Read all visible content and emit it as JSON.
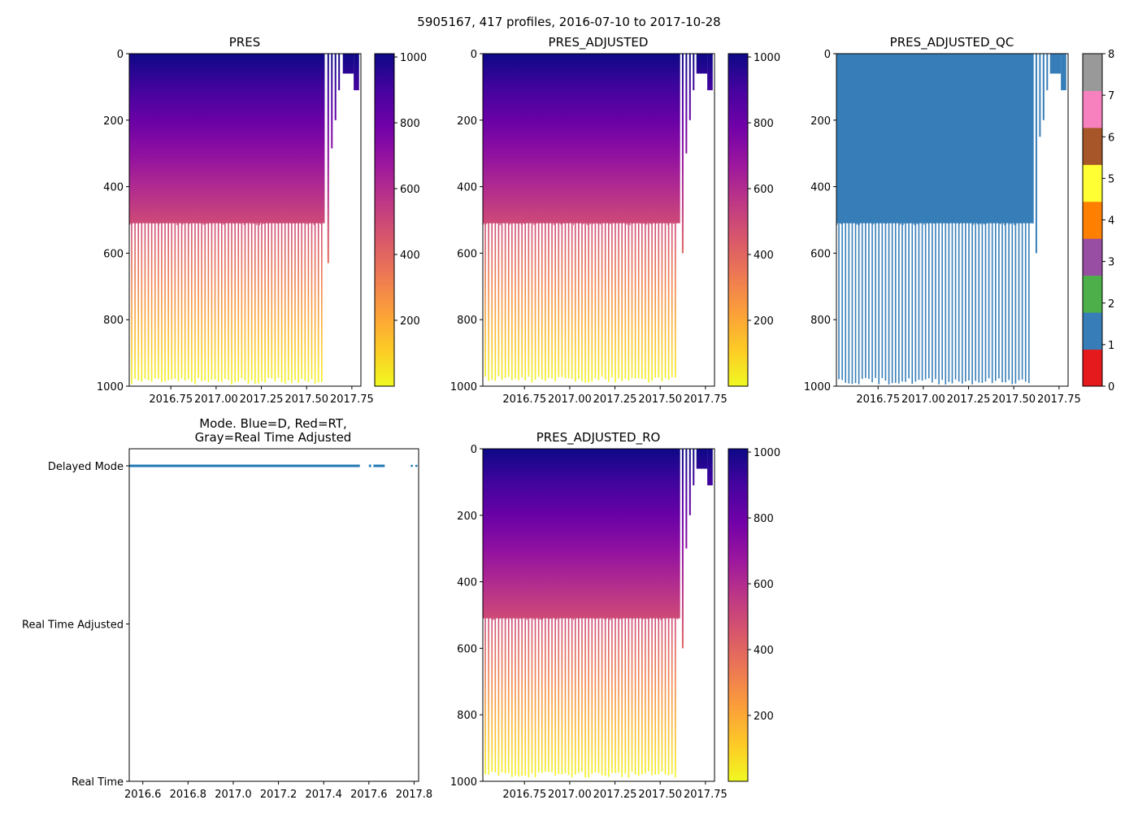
{
  "figure": {
    "suptitle": "5905167, 417 profiles, 2016-07-10 to 2017-10-28"
  },
  "colors": {
    "plasma": [
      "#0d0887",
      "#46039f",
      "#7201a8",
      "#9c179e",
      "#bd3786",
      "#d8576b",
      "#ed7953",
      "#fb9f3a",
      "#fdca26",
      "#f0f921"
    ],
    "qc": [
      "#e41a1c",
      "#377eb8",
      "#4daf4a",
      "#984ea3",
      "#ff7f00",
      "#ffff33",
      "#a65628",
      "#f781bf",
      "#999999"
    ],
    "mode_line": "#1f77b4",
    "axis": "#000000"
  },
  "chart_data": [
    {
      "id": "pres",
      "type": "heatmap",
      "title": "PRES",
      "colormap": "plasma",
      "xlim": [
        2016.52,
        2017.8
      ],
      "ylim": [
        1000,
        0
      ],
      "xticks": [
        2016.75,
        2017.0,
        2017.25,
        2017.5,
        2017.75
      ],
      "xtick_labels": [
        "2016.75",
        "2017.00",
        "2017.25",
        "2017.50",
        "2017.75"
      ],
      "yticks": [
        0,
        200,
        400,
        600,
        800,
        1000
      ],
      "ytick_labels": [
        "0",
        "200",
        "400",
        "600",
        "800",
        "1000"
      ],
      "colorbar": {
        "range": [
          0,
          1010
        ],
        "ticks": [
          200,
          400,
          600,
          800,
          1000
        ],
        "tick_labels": [
          "200",
          "400",
          "600",
          "800",
          "1000"
        ]
      },
      "continuous_segment": {
        "x_start": 2016.52,
        "x_end": 2017.6,
        "depth_max": 510
      },
      "deep_profiles": {
        "x_start": 2016.53,
        "x_end": 2017.58,
        "count": 58,
        "depth_max": 995
      },
      "late_profiles": [
        {
          "x": 2017.615,
          "depth_max": 630
        },
        {
          "x": 2017.635,
          "depth_max": 285
        },
        {
          "x": 2017.655,
          "depth_max": 200
        },
        {
          "x": 2017.675,
          "depth_max": 110
        },
        {
          "x": 2017.7,
          "depth_max": 60,
          "x_end": 2017.76
        },
        {
          "x": 2017.76,
          "depth_max": 110,
          "x_end": 2017.79
        }
      ]
    },
    {
      "id": "pres_adjusted",
      "type": "heatmap",
      "title": "PRES_ADJUSTED",
      "colormap": "plasma",
      "xlim": [
        2016.52,
        2017.8
      ],
      "ylim": [
        1000,
        0
      ],
      "xticks": [
        2016.75,
        2017.0,
        2017.25,
        2017.5,
        2017.75
      ],
      "xtick_labels": [
        "2016.75",
        "2017.00",
        "2017.25",
        "2017.50",
        "2017.75"
      ],
      "yticks": [
        0,
        200,
        400,
        600,
        800,
        1000
      ],
      "ytick_labels": [
        "0",
        "200",
        "400",
        "600",
        "800",
        "1000"
      ],
      "colorbar": {
        "range": [
          0,
          1010
        ],
        "ticks": [
          200,
          400,
          600,
          800,
          1000
        ],
        "tick_labels": [
          "200",
          "400",
          "600",
          "800",
          "1000"
        ]
      },
      "continuous_segment": {
        "x_start": 2016.52,
        "x_end": 2017.61,
        "depth_max": 510
      },
      "deep_profiles": {
        "x_start": 2016.53,
        "x_end": 2017.58,
        "count": 58,
        "depth_max": 990
      },
      "late_profiles": [
        {
          "x": 2017.62,
          "depth_max": 600
        },
        {
          "x": 2017.64,
          "depth_max": 300
        },
        {
          "x": 2017.66,
          "depth_max": 200
        },
        {
          "x": 2017.68,
          "depth_max": 110
        },
        {
          "x": 2017.7,
          "depth_max": 60,
          "x_end": 2017.76
        },
        {
          "x": 2017.76,
          "depth_max": 110,
          "x_end": 2017.79
        }
      ]
    },
    {
      "id": "pres_adjusted_qc",
      "type": "heatmap",
      "title": "PRES_ADJUSTED_QC",
      "colormap": "qc",
      "qc_flag": 1,
      "xlim": [
        2016.52,
        2017.8
      ],
      "ylim": [
        1000,
        0
      ],
      "xticks": [
        2016.75,
        2017.0,
        2017.25,
        2017.5,
        2017.75
      ],
      "xtick_labels": [
        "2016.75",
        "2017.00",
        "2017.25",
        "2017.50",
        "2017.75"
      ],
      "yticks": [
        0,
        200,
        400,
        600,
        800,
        1000
      ],
      "ytick_labels": [
        "0",
        "200",
        "400",
        "600",
        "800",
        "1000"
      ],
      "colorbar": {
        "range": [
          0,
          8
        ],
        "ticks": [
          0,
          1,
          2,
          3,
          4,
          5,
          6,
          7,
          8
        ],
        "tick_labels": [
          "0",
          "1",
          "2",
          "3",
          "4",
          "5",
          "6",
          "7",
          "8"
        ]
      },
      "continuous_segment": {
        "x_start": 2016.52,
        "x_end": 2017.61,
        "depth_max": 510
      },
      "deep_profiles": {
        "x_start": 2016.53,
        "x_end": 2017.58,
        "count": 58,
        "depth_max": 995
      },
      "late_profiles": [
        {
          "x": 2017.62,
          "depth_max": 600
        },
        {
          "x": 2017.64,
          "depth_max": 250
        },
        {
          "x": 2017.66,
          "depth_max": 200
        },
        {
          "x": 2017.68,
          "depth_max": 110
        },
        {
          "x": 2017.7,
          "depth_max": 60,
          "x_end": 2017.76
        },
        {
          "x": 2017.76,
          "depth_max": 110,
          "x_end": 2017.79
        }
      ]
    },
    {
      "id": "mode",
      "type": "scatter",
      "title_lines": [
        "Mode. Blue=D, Red=RT,",
        "Gray=Real Time Adjusted"
      ],
      "xlim": [
        2016.54,
        2017.82
      ],
      "xticks": [
        2016.6,
        2016.8,
        2017.0,
        2017.2,
        2017.4,
        2017.6,
        2017.8
      ],
      "xtick_labels": [
        "2016.6",
        "2016.8",
        "2017.0",
        "2017.2",
        "2017.4",
        "2017.6",
        "2017.8"
      ],
      "categories": [
        "Real Time",
        "Real Time Adjusted",
        "Delayed Mode"
      ],
      "series": [
        {
          "name": "Delayed Mode",
          "level": 2,
          "segments": [
            [
              2016.54,
              2017.56
            ],
            [
              2017.6,
              2017.61
            ],
            [
              2017.62,
              2017.67
            ]
          ],
          "points": [
            2017.79,
            2017.81
          ]
        }
      ]
    },
    {
      "id": "pres_adjusted_ro",
      "type": "heatmap",
      "title": "PRES_ADJUSTED_RO",
      "colormap": "plasma",
      "xlim": [
        2016.52,
        2017.8
      ],
      "ylim": [
        1000,
        0
      ],
      "xticks": [
        2016.75,
        2017.0,
        2017.25,
        2017.5,
        2017.75
      ],
      "xtick_labels": [
        "2016.75",
        "2017.00",
        "2017.25",
        "2017.50",
        "2017.75"
      ],
      "yticks": [
        0,
        200,
        400,
        600,
        800,
        1000
      ],
      "ytick_labels": [
        "0",
        "200",
        "400",
        "600",
        "800",
        "1000"
      ],
      "colorbar": {
        "range": [
          0,
          1010
        ],
        "ticks": [
          200,
          400,
          600,
          800,
          1000
        ],
        "tick_labels": [
          "200",
          "400",
          "600",
          "800",
          "1000"
        ]
      },
      "continuous_segment": {
        "x_start": 2016.52,
        "x_end": 2017.61,
        "depth_max": 510
      },
      "deep_profiles": {
        "x_start": 2016.53,
        "x_end": 2017.58,
        "count": 58,
        "depth_max": 990
      },
      "late_profiles": [
        {
          "x": 2017.62,
          "depth_max": 600
        },
        {
          "x": 2017.64,
          "depth_max": 300
        },
        {
          "x": 2017.66,
          "depth_max": 200
        },
        {
          "x": 2017.68,
          "depth_max": 110
        },
        {
          "x": 2017.7,
          "depth_max": 60,
          "x_end": 2017.76
        },
        {
          "x": 2017.76,
          "depth_max": 110,
          "x_end": 2017.79
        }
      ]
    }
  ]
}
